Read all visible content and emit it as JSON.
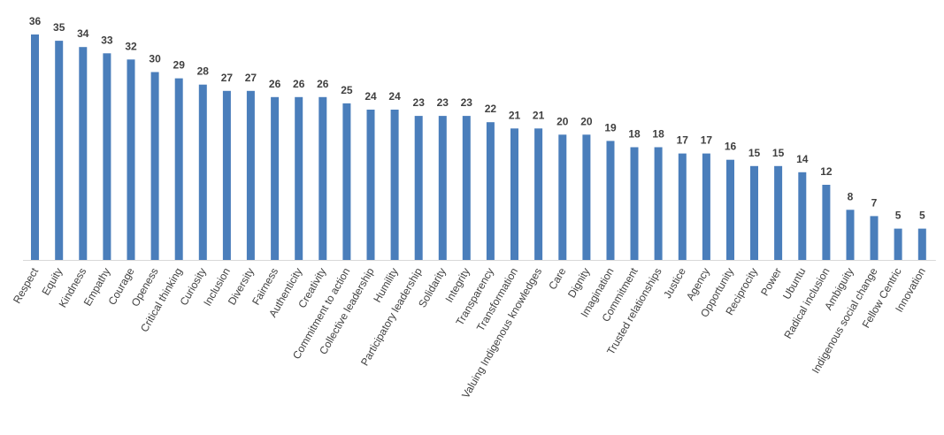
{
  "chart_data": {
    "type": "bar",
    "categories": [
      "Respect",
      "Equity",
      "Kindness",
      "Empathy",
      "Courage",
      "Openess",
      "Critical thinking",
      "Curiosity",
      "Inclusion",
      "Diversity",
      "Fairness",
      "Authenticity",
      "Creativity",
      "Commitment to action",
      "Collective leadership",
      "Humility",
      "Participatory leadership",
      "Solidarity",
      "Integrity",
      "Transparency",
      "Transformation",
      "Valuing Indigenous knowledges",
      "Care",
      "Dignity",
      "Imagination",
      "Commitment",
      "Trusted relationships",
      "Justice",
      "Agency",
      "Opportunity",
      "Reciprocity",
      "Power",
      "Ubuntu",
      "Radical inclusion",
      "Ambiguity",
      "Indigenous social change",
      "Fellow Centric",
      "Innovation"
    ],
    "values": [
      36,
      35,
      34,
      33,
      32,
      30,
      29,
      28,
      27,
      27,
      26,
      26,
      26,
      25,
      24,
      24,
      23,
      23,
      23,
      22,
      21,
      21,
      20,
      20,
      19,
      18,
      18,
      17,
      17,
      16,
      15,
      15,
      14,
      12,
      8,
      7,
      5,
      5
    ],
    "title": "",
    "xlabel": "",
    "ylabel": "",
    "ylim": [
      0,
      36
    ],
    "grid": false,
    "legend": "none",
    "data_labels": true,
    "bar_color": "#4a7ebb"
  }
}
